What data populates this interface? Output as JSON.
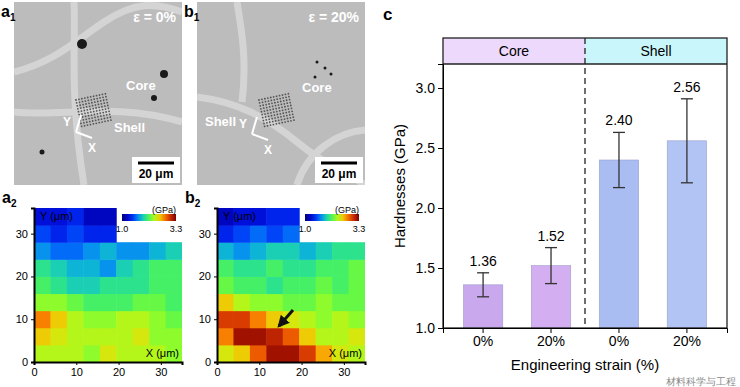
{
  "chart_data": [
    {
      "type": "heatmap",
      "panel": "a",
      "panel_sub": "2",
      "x_label": "X (μm)",
      "y_label": "Y (μm)",
      "xlim": [
        0,
        35
      ],
      "ylim": [
        0,
        36
      ],
      "xticks": [
        0,
        10,
        20,
        30
      ],
      "yticks": [
        0,
        10,
        20,
        30
      ],
      "cells": [
        [
          2.4,
          2.4,
          2.4,
          2.3,
          2.5,
          2.4,
          2.4,
          2.4,
          2.3
        ],
        [
          2.6,
          2.5,
          2.4,
          2.4,
          2.4,
          2.4,
          2.5,
          2.3,
          2.3
        ],
        [
          2.8,
          2.6,
          2.4,
          2.3,
          2.3,
          2.4,
          2.4,
          2.3,
          2.2
        ],
        [
          2.3,
          2.3,
          2.2,
          2.1,
          2.1,
          2.1,
          2.2,
          2.2,
          2.1
        ],
        [
          2.1,
          2.0,
          1.9,
          1.9,
          2.0,
          2.0,
          2.0,
          2.1,
          2.1
        ],
        [
          2.0,
          1.9,
          1.8,
          1.8,
          1.7,
          1.9,
          2.0,
          2.1,
          2.1
        ],
        [
          1.7,
          1.6,
          1.6,
          1.7,
          1.8,
          1.7,
          1.7,
          1.8,
          1.9
        ],
        [
          1.5,
          1.4,
          1.5,
          1.4,
          1.4,
          null,
          null,
          null,
          null
        ],
        [
          1.3,
          1.3,
          1.4,
          1.2,
          1.2,
          null,
          null,
          null,
          null
        ]
      ],
      "colorbar": {
        "label": "(GPa)",
        "range": [
          1.0,
          3.3
        ],
        "ticks": [
          {
            "value": 1.0,
            "label": "1.0"
          },
          3.3
        ]
      }
    },
    {
      "type": "heatmap",
      "panel": "b",
      "panel_sub": "2",
      "x_label": "X (μm)",
      "y_label": "Y (μm)",
      "xlim": [
        0,
        35
      ],
      "ylim": [
        0,
        36
      ],
      "xticks": [
        0,
        10,
        20,
        30
      ],
      "yticks": [
        0,
        10,
        20,
        30
      ],
      "cells": [
        [
          2.5,
          2.6,
          2.9,
          3.2,
          3.2,
          3.0,
          2.7,
          2.5,
          2.4
        ],
        [
          2.8,
          3.2,
          3.2,
          3.1,
          2.9,
          2.6,
          2.4,
          2.4,
          2.5
        ],
        [
          3.0,
          3.0,
          2.8,
          2.6,
          2.5,
          2.4,
          2.3,
          2.4,
          2.3
        ],
        [
          2.6,
          2.4,
          2.3,
          2.3,
          2.2,
          2.2,
          2.3,
          2.2,
          2.2
        ],
        [
          2.2,
          2.1,
          2.1,
          2.0,
          2.1,
          2.1,
          2.2,
          2.1,
          2.2
        ],
        [
          2.1,
          2.0,
          2.0,
          2.1,
          2.0,
          2.0,
          2.1,
          2.1,
          2.2
        ],
        [
          1.8,
          1.7,
          1.8,
          1.9,
          1.9,
          1.8,
          1.9,
          2.0,
          2.0
        ],
        [
          1.4,
          1.5,
          1.6,
          1.5,
          1.6,
          null,
          null,
          null,
          null
        ],
        [
          1.2,
          1.3,
          1.3,
          1.4,
          1.4,
          null,
          null,
          null,
          null
        ]
      ],
      "colorbar": {
        "label": "(GPa)",
        "range": [
          1.0,
          3.3
        ],
        "ticks": [
          {
            "value": 1.0,
            "label": "1.0"
          },
          3.3
        ]
      }
    },
    {
      "type": "bar",
      "panel": "c",
      "x_label": "Engineering strain (%)",
      "y_label": "Hardnesses (GPa)",
      "categories": [
        "0%",
        "20%",
        "0%",
        "20%"
      ],
      "values": [
        1.36,
        1.52,
        2.4,
        2.56
      ],
      "value_labels": [
        "1.36",
        "1.52",
        "2.40",
        "2.56"
      ],
      "errors": [
        0.1,
        0.15,
        0.23,
        0.35
      ],
      "colors": [
        "#c9a8ee",
        "#d3aef0",
        "#a9bdf2",
        "#b2c4f4"
      ],
      "groups": [
        {
          "label": "Core",
          "color": "#ecd9fb"
        },
        {
          "label": "Shell",
          "color": "#c8f6fb"
        }
      ],
      "ylim": [
        1.0,
        3.2
      ],
      "yticks": [
        {
          "value": 1.0,
          "label": "1.0"
        },
        1.5,
        {
          "value": 2.0,
          "label": "2.0"
        },
        2.5,
        {
          "value": 3.0,
          "label": "3.0"
        }
      ],
      "data_labels": true
    }
  ],
  "images": [
    {
      "panel": "a",
      "panel_sub": "1",
      "strain": "ε = 0%",
      "core": "Core",
      "shell": "Shell",
      "scale": "20 μm",
      "x_axis": "X",
      "y_axis": "Y"
    },
    {
      "panel": "b",
      "panel_sub": "1",
      "strain": "ε = 20%",
      "core": "Core",
      "shell": "Shell",
      "scale": "20 μm",
      "x_axis": "X",
      "y_axis": "Y"
    }
  ],
  "watermark": "材料科学与工程"
}
